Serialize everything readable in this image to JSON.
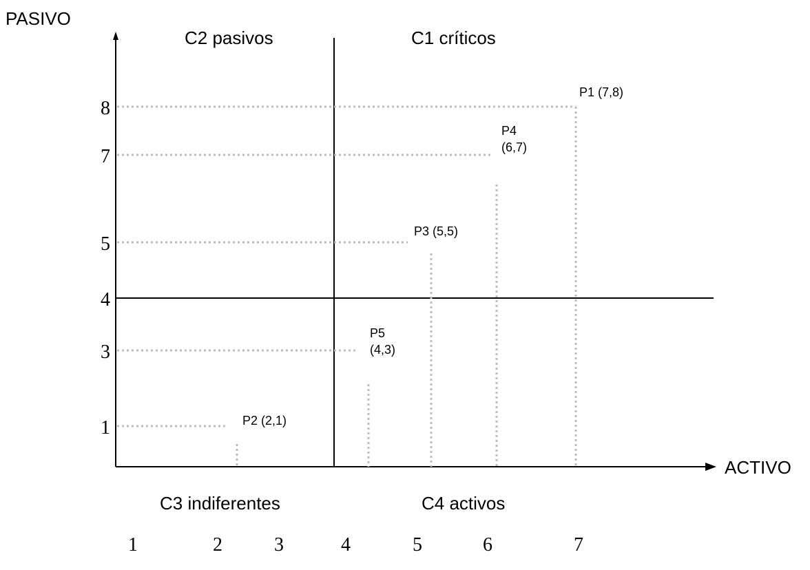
{
  "axes": {
    "y_label": "PASIVO",
    "x_label": "ACTIVO",
    "y_ticks": [
      8,
      7,
      5,
      4,
      3,
      1
    ],
    "x_ticks": [
      1,
      2,
      3,
      4,
      5,
      6,
      7
    ]
  },
  "quadrants": {
    "top_left": "C2 pasivos",
    "top_right": "C1 críticos",
    "bottom_left": "C3 indiferentes",
    "bottom_right": "C4 activos"
  },
  "points": [
    {
      "label": "P1 (7,8)",
      "x": 7,
      "y": 8
    },
    {
      "label": "P4\n(6,7)",
      "x": 6,
      "y": 7
    },
    {
      "label": "P3 (5,5)",
      "x": 5,
      "y": 5
    },
    {
      "label": "P5\n(4,3)",
      "x": 4,
      "y": 3
    },
    {
      "label": "P2 (2,1)",
      "x": 2,
      "y": 1
    }
  ],
  "colors": {
    "axis": "#000000",
    "guide": "#bdbdbd"
  }
}
